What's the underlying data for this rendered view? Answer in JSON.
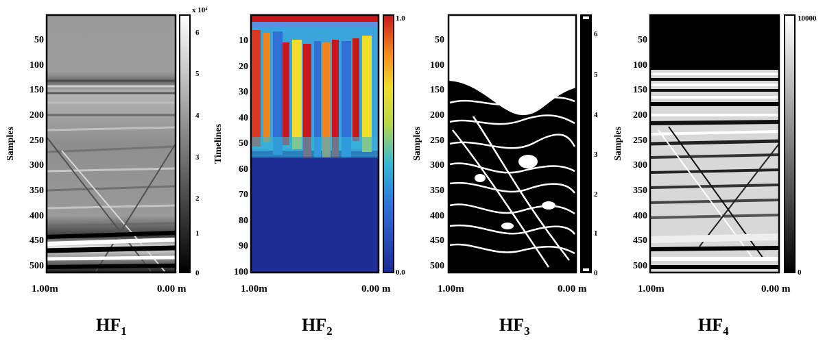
{
  "panels": [
    {
      "id": "hf1",
      "title": "HF",
      "subscript": "1",
      "ylabel": "Samples",
      "yticks": [
        "50",
        "100",
        "150",
        "200",
        "250",
        "300",
        "350",
        "400",
        "450",
        "500"
      ],
      "x_left": "1.00m",
      "x_right": "0.00 m",
      "colorbar": {
        "scale_note": "x 10⁴",
        "ticks": [
          "6",
          "5",
          "4",
          "3",
          "2",
          "1",
          "0"
        ],
        "colormap": "gray"
      }
    },
    {
      "id": "hf2",
      "title": "HF",
      "subscript": "2",
      "ylabel": "Timelines",
      "yticks": [
        "10",
        "20",
        "30",
        "40",
        "50",
        "60",
        "70",
        "80",
        "90",
        "100"
      ],
      "x_left": "1.00m",
      "x_right": "0.00 m",
      "colorbar": {
        "scale_note": "",
        "ticks": [
          "1.0",
          "0.0"
        ],
        "colormap": "jet"
      }
    },
    {
      "id": "hf3",
      "title": "HF",
      "subscript": "3",
      "ylabel": "Samples",
      "yticks": [
        "50",
        "100",
        "150",
        "200",
        "250",
        "300",
        "350",
        "400",
        "450",
        "500"
      ],
      "x_left": "1.00m",
      "x_right": "0.00 m",
      "colorbar": {
        "scale_note": "",
        "ticks": [
          "6",
          "5",
          "4",
          "3",
          "2",
          "1",
          "0"
        ],
        "colormap": "binary"
      }
    },
    {
      "id": "hf4",
      "title": "HF",
      "subscript": "4",
      "ylabel": "Samples",
      "yticks": [
        "50",
        "100",
        "150",
        "200",
        "250",
        "300",
        "350",
        "400",
        "450",
        "500"
      ],
      "x_left": "1.00m",
      "x_right": "0.00 m",
      "colorbar": {
        "scale_note": "",
        "ticks": [
          "10000",
          "0"
        ],
        "colormap": "gray"
      }
    }
  ]
}
